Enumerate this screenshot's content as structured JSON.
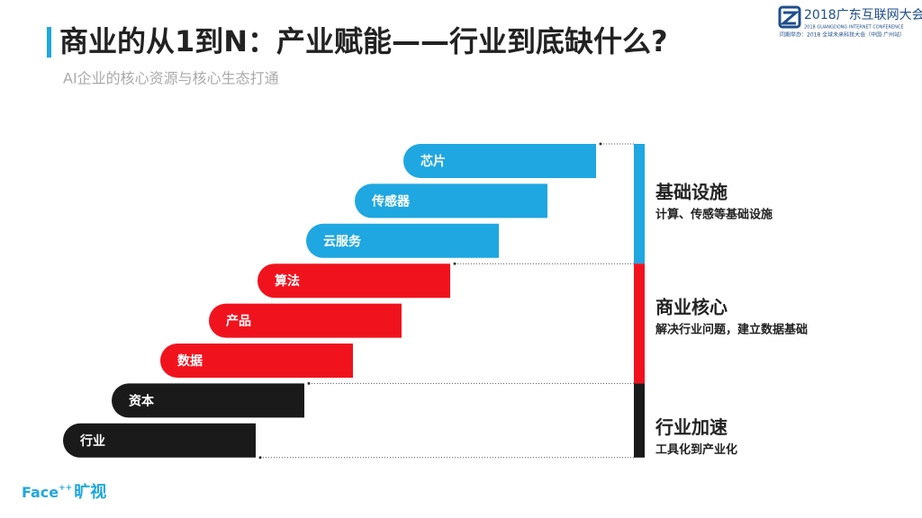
{
  "header": {
    "title": "商业的从1到N：产业赋能——行业到底缺什么?",
    "subtitle": "AI企业的核心资源与核心生态打通"
  },
  "logo": {
    "name": "2018广东互联网大会",
    "english": "2018 GUANGDONG INTERNET CONFERENCE",
    "note": "同期举办：2018 全球未来科技大会（中国·广州站）"
  },
  "bars": [
    {
      "label": "芯片",
      "group": 0
    },
    {
      "label": "传感器",
      "group": 0
    },
    {
      "label": "云服务",
      "group": 0
    },
    {
      "label": "算法",
      "group": 1
    },
    {
      "label": "产品",
      "group": 1
    },
    {
      "label": "数据",
      "group": 1
    },
    {
      "label": "资本",
      "group": 2
    },
    {
      "label": "行业",
      "group": 2
    }
  ],
  "groups": [
    {
      "title": "基础设施",
      "desc": "计算、传感等基础设施",
      "color": "#1fa7e1"
    },
    {
      "title": "商业核心",
      "desc": "解决行业问题，建立数据基础",
      "color": "#f0131e"
    },
    {
      "title": "行业加速",
      "desc": "工具化到产业化",
      "color": "#1a1a1a"
    }
  ],
  "footer": {
    "brand": "Face",
    "brand_sup": "++",
    "brand_cn": "旷视"
  }
}
